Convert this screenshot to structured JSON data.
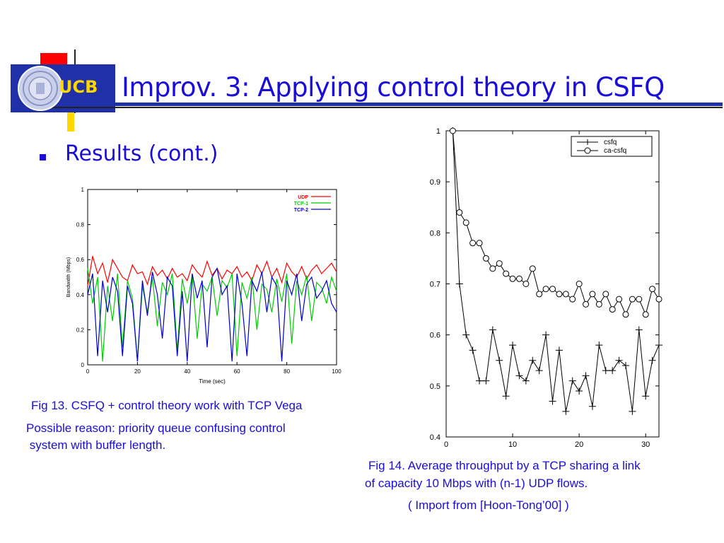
{
  "logo": {
    "text": "UCB"
  },
  "title": "Improv. 3:  Applying control theory in CSFQ",
  "bullet": "Results (cont.)",
  "left_caption": {
    "line1": "Fig 13.   CSFQ + control theory work with TCP Vega",
    "line2": "Possible reason: priority queue confusing control",
    "line3": " system with buffer length."
  },
  "right_caption": {
    "line1": "Fig 14.  Average throughput by a TCP sharing a link",
    "line2": "of capacity 10 Mbps with (n-1) UDP flows.",
    "line3": "( Import from [Hoon-Tong’00] )"
  },
  "colors": {
    "title": "#1a0dd8",
    "deco_red": "#ff0000",
    "deco_yellow": "#ffd700",
    "deco_blue": "#2030a8",
    "udp": "#ff0000",
    "tcp1": "#00cc00",
    "tcp2": "#0000cc"
  },
  "chart_data": [
    {
      "type": "line",
      "xlabel": "Time (sec)",
      "ylabel": "Bandwidth (Mbps)",
      "xlim": [
        0,
        100
      ],
      "ylim": [
        0,
        1
      ],
      "xticks": [
        "0",
        "20",
        "40",
        "60",
        "80",
        "100"
      ],
      "yticks": [
        "0",
        "0.2",
        "0.4",
        "0.6",
        "0.8",
        "1"
      ],
      "legend_position": "top-right",
      "grid": false,
      "series": [
        {
          "name": "UDP",
          "color": "#ff0000",
          "x": [
            0,
            2,
            4,
            6,
            8,
            10,
            12,
            14,
            16,
            18,
            20,
            22,
            24,
            26,
            28,
            30,
            32,
            34,
            36,
            38,
            40,
            42,
            44,
            46,
            48,
            50,
            52,
            54,
            56,
            58,
            60,
            62,
            64,
            66,
            68,
            70,
            72,
            74,
            76,
            78,
            80,
            82,
            84,
            86,
            88,
            90,
            92,
            94,
            96,
            98,
            100
          ],
          "values": [
            0.45,
            0.62,
            0.52,
            0.58,
            0.47,
            0.6,
            0.55,
            0.5,
            0.48,
            0.57,
            0.52,
            0.53,
            0.46,
            0.56,
            0.51,
            0.54,
            0.49,
            0.55,
            0.5,
            0.52,
            0.48,
            0.57,
            0.53,
            0.5,
            0.59,
            0.51,
            0.55,
            0.49,
            0.54,
            0.52,
            0.56,
            0.5,
            0.53,
            0.48,
            0.57,
            0.52,
            0.59,
            0.5,
            0.55,
            0.47,
            0.58,
            0.53,
            0.5,
            0.56,
            0.49,
            0.54,
            0.57,
            0.52,
            0.55,
            0.58,
            0.53
          ]
        },
        {
          "name": "TCP-1",
          "color": "#00cc00",
          "x": [
            0,
            2,
            4,
            6,
            8,
            10,
            12,
            14,
            16,
            18,
            20,
            22,
            24,
            26,
            28,
            30,
            32,
            34,
            36,
            38,
            40,
            42,
            44,
            46,
            48,
            50,
            52,
            54,
            56,
            58,
            60,
            62,
            64,
            66,
            68,
            70,
            72,
            74,
            76,
            78,
            80,
            82,
            84,
            86,
            88,
            90,
            92,
            94,
            96,
            98,
            100
          ],
          "values": [
            0.55,
            0.35,
            0.5,
            0.02,
            0.45,
            0.25,
            0.52,
            0.1,
            0.48,
            0.38,
            0.02,
            0.45,
            0.3,
            0.5,
            0.22,
            0.47,
            0.4,
            0.52,
            0.08,
            0.49,
            0.35,
            0.51,
            0.15,
            0.46,
            0.42,
            0.5,
            0.28,
            0.48,
            0.44,
            0.52,
            0.05,
            0.47,
            0.38,
            0.5,
            0.2,
            0.46,
            0.43,
            0.3,
            0.49,
            0.36,
            0.52,
            0.12,
            0.48,
            0.4,
            0.51,
            0.25,
            0.47,
            0.44,
            0.35,
            0.5,
            0.42
          ]
        },
        {
          "name": "TCP-2",
          "color": "#0000cc",
          "x": [
            0,
            2,
            4,
            6,
            8,
            10,
            12,
            14,
            16,
            18,
            20,
            22,
            24,
            26,
            28,
            30,
            32,
            34,
            36,
            38,
            40,
            42,
            44,
            46,
            48,
            50,
            52,
            54,
            56,
            58,
            60,
            62,
            64,
            66,
            68,
            70,
            72,
            74,
            76,
            78,
            80,
            82,
            84,
            86,
            88,
            90,
            92,
            94,
            96,
            98,
            100
          ],
          "values": [
            0.4,
            0.52,
            0.05,
            0.48,
            0.3,
            0.5,
            0.42,
            0.05,
            0.45,
            0.35,
            0.02,
            0.48,
            0.28,
            0.53,
            0.4,
            0.15,
            0.5,
            0.45,
            0.05,
            0.42,
            0.02,
            0.52,
            0.38,
            0.48,
            0.1,
            0.5,
            0.55,
            0.4,
            0.45,
            0.02,
            0.52,
            0.35,
            0.05,
            0.48,
            0.42,
            0.53,
            0.3,
            0.5,
            0.45,
            0.02,
            0.48,
            0.4,
            0.52,
            0.25,
            0.46,
            0.5,
            0.38,
            0.42,
            0.48,
            0.35,
            0.3
          ]
        }
      ]
    },
    {
      "type": "line",
      "xlabel": "",
      "ylabel": "",
      "xlim": [
        0,
        32
      ],
      "ylim": [
        0.4,
        1
      ],
      "xticks": [
        "0",
        "10",
        "20",
        "30"
      ],
      "yticks": [
        "0.4",
        "0.5",
        "0.6",
        "0.7",
        "0.8",
        "0.9",
        "1"
      ],
      "legend_position": "top-right",
      "grid": false,
      "series": [
        {
          "name": "csfq",
          "marker": "plus",
          "x": [
            1,
            2,
            3,
            4,
            5,
            6,
            7,
            8,
            9,
            10,
            11,
            12,
            13,
            14,
            15,
            16,
            17,
            18,
            19,
            20,
            21,
            22,
            23,
            24,
            25,
            26,
            27,
            28,
            29,
            30,
            31,
            32
          ],
          "values": [
            1.0,
            0.7,
            0.6,
            0.57,
            0.51,
            0.51,
            0.61,
            0.55,
            0.48,
            0.58,
            0.52,
            0.51,
            0.55,
            0.53,
            0.6,
            0.47,
            0.57,
            0.45,
            0.51,
            0.49,
            0.52,
            0.46,
            0.58,
            0.53,
            0.53,
            0.55,
            0.54,
            0.45,
            0.61,
            0.48,
            0.55,
            0.58
          ]
        },
        {
          "name": "ca-csfq",
          "marker": "circle",
          "x": [
            1,
            2,
            3,
            4,
            5,
            6,
            7,
            8,
            9,
            10,
            11,
            12,
            13,
            14,
            15,
            16,
            17,
            18,
            19,
            20,
            21,
            22,
            23,
            24,
            25,
            26,
            27,
            28,
            29,
            30,
            31,
            32
          ],
          "values": [
            1.0,
            0.84,
            0.82,
            0.78,
            0.78,
            0.75,
            0.73,
            0.74,
            0.72,
            0.71,
            0.71,
            0.7,
            0.73,
            0.68,
            0.69,
            0.69,
            0.68,
            0.68,
            0.67,
            0.7,
            0.66,
            0.68,
            0.66,
            0.68,
            0.65,
            0.67,
            0.64,
            0.67,
            0.67,
            0.64,
            0.69,
            0.67
          ]
        }
      ]
    }
  ]
}
